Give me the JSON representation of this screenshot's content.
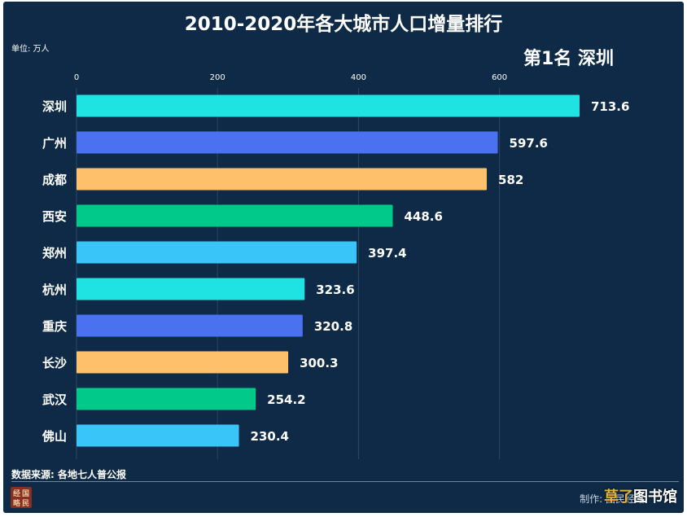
{
  "chart_data": {
    "type": "bar",
    "orientation": "horizontal",
    "title": "2010-2020年各大城市人口增量排行",
    "unit_label": "单位: 万人",
    "rank_label": "第1名 深圳",
    "categories": [
      "深圳",
      "广州",
      "成都",
      "西安",
      "郑州",
      "杭州",
      "重庆",
      "长沙",
      "武汉",
      "佛山"
    ],
    "values": [
      713.6,
      597.6,
      582,
      448.6,
      397.4,
      323.6,
      320.8,
      300.3,
      254.2,
      230.4
    ],
    "value_labels": [
      "713.6",
      "597.6",
      "582",
      "448.6",
      "397.4",
      "323.6",
      "320.8",
      "300.3",
      "254.2",
      "230.4"
    ],
    "bar_colors": [
      "#1fe3e3",
      "#4a72f0",
      "#ffc06b",
      "#00c98a",
      "#39c5f7",
      "#1fe3e3",
      "#4a72f0",
      "#ffc06b",
      "#00c98a",
      "#39c5f7"
    ],
    "x_ticks": [
      0,
      200,
      400,
      600
    ],
    "xlim": [
      0,
      713.6
    ],
    "grid": true,
    "background_color": "#0e2a47"
  },
  "footer": {
    "source": "数据来源: 各地七人普公报",
    "credit": "制作: 国民经略",
    "logo_text": [
      "经",
      "国",
      "略",
      "民"
    ],
    "watermark_highlight": "草了",
    "watermark_rest": "图书馆"
  }
}
